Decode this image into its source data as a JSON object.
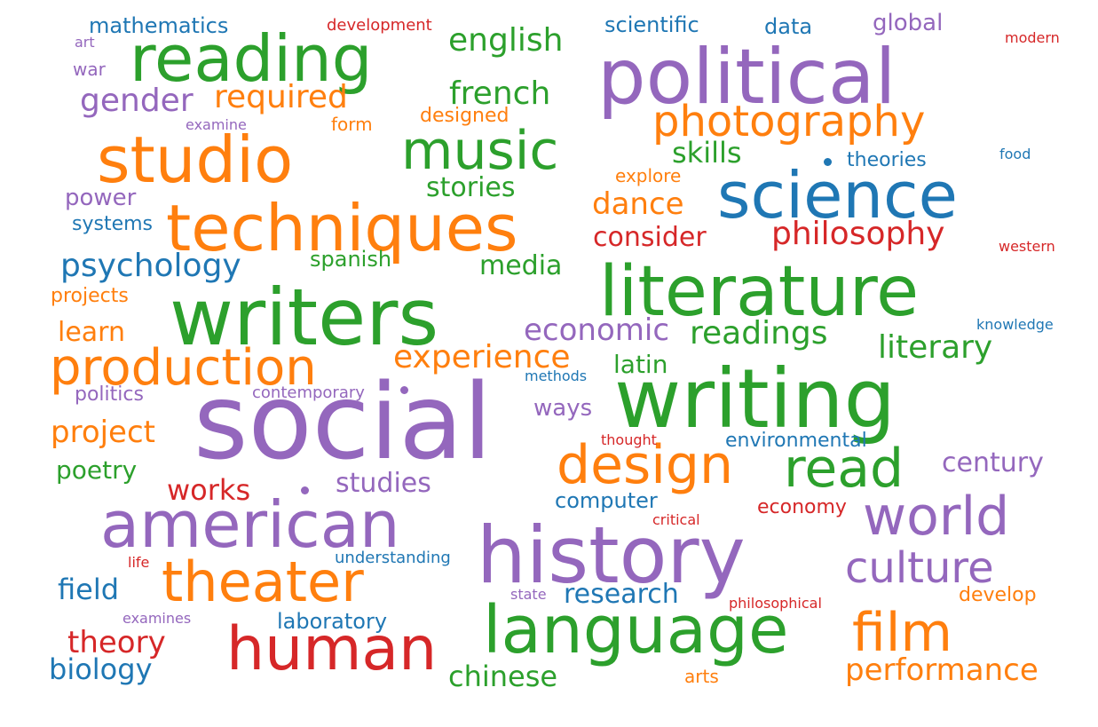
{
  "colors": {
    "purple": "#9467bd",
    "orange": "#ff7f0e",
    "green": "#2ca02c",
    "blue": "#1f77b4",
    "red": "#d62728"
  },
  "words": [
    {
      "text": "social",
      "color": "purple"
    },
    {
      "text": "writing",
      "color": "green"
    },
    {
      "text": "political",
      "color": "purple"
    },
    {
      "text": "writers",
      "color": "green"
    },
    {
      "text": "history",
      "color": "purple"
    },
    {
      "text": "literature",
      "color": "green"
    },
    {
      "text": "language",
      "color": "green"
    },
    {
      "text": "techniques",
      "color": "orange"
    },
    {
      "text": "american",
      "color": "purple"
    },
    {
      "text": "studio",
      "color": "orange"
    },
    {
      "text": "science",
      "color": "blue"
    },
    {
      "text": "reading",
      "color": "green"
    },
    {
      "text": "human",
      "color": "red"
    },
    {
      "text": "production",
      "color": "orange"
    },
    {
      "text": "theater",
      "color": "orange"
    },
    {
      "text": "design",
      "color": "orange"
    },
    {
      "text": "read",
      "color": "green"
    },
    {
      "text": "world",
      "color": "purple"
    },
    {
      "text": "music",
      "color": "green"
    },
    {
      "text": "film",
      "color": "orange"
    },
    {
      "text": "photography",
      "color": "orange"
    },
    {
      "text": "culture",
      "color": "purple"
    },
    {
      "text": "psychology",
      "color": "blue"
    },
    {
      "text": "philosophy",
      "color": "red"
    },
    {
      "text": "experience",
      "color": "orange"
    },
    {
      "text": "english",
      "color": "green"
    },
    {
      "text": "required",
      "color": "orange"
    },
    {
      "text": "gender",
      "color": "purple"
    },
    {
      "text": "french",
      "color": "green"
    },
    {
      "text": "readings",
      "color": "green"
    },
    {
      "text": "literary",
      "color": "green"
    },
    {
      "text": "economic",
      "color": "purple"
    },
    {
      "text": "project",
      "color": "orange"
    },
    {
      "text": "performance",
      "color": "orange"
    },
    {
      "text": "theory",
      "color": "red"
    },
    {
      "text": "research",
      "color": "blue"
    },
    {
      "text": "studies",
      "color": "purple"
    },
    {
      "text": "dance",
      "color": "orange"
    },
    {
      "text": "consider",
      "color": "red"
    },
    {
      "text": "skills",
      "color": "green"
    },
    {
      "text": "stories",
      "color": "green"
    },
    {
      "text": "media",
      "color": "green"
    },
    {
      "text": "field",
      "color": "blue"
    },
    {
      "text": "biology",
      "color": "blue"
    },
    {
      "text": "chinese",
      "color": "green"
    },
    {
      "text": "century",
      "color": "purple"
    },
    {
      "text": "works",
      "color": "red"
    },
    {
      "text": "learn",
      "color": "orange"
    },
    {
      "text": "latin",
      "color": "green"
    },
    {
      "text": "poetry",
      "color": "green"
    },
    {
      "text": "ways",
      "color": "purple"
    },
    {
      "text": "mathematics",
      "color": "blue"
    },
    {
      "text": "global",
      "color": "purple"
    },
    {
      "text": "spanish",
      "color": "green"
    },
    {
      "text": "power",
      "color": "purple"
    },
    {
      "text": "laboratory",
      "color": "blue"
    },
    {
      "text": "computer",
      "color": "blue"
    },
    {
      "text": "environmental",
      "color": "blue"
    },
    {
      "text": "scientific",
      "color": "blue"
    },
    {
      "text": "data",
      "color": "blue"
    },
    {
      "text": "theories",
      "color": "blue"
    },
    {
      "text": "economy",
      "color": "red"
    },
    {
      "text": "develop",
      "color": "orange"
    },
    {
      "text": "systems",
      "color": "blue"
    },
    {
      "text": "politics",
      "color": "purple"
    },
    {
      "text": "projects",
      "color": "orange"
    },
    {
      "text": "designed",
      "color": "orange"
    },
    {
      "text": "explore",
      "color": "orange"
    },
    {
      "text": "form",
      "color": "orange"
    },
    {
      "text": "war",
      "color": "purple"
    },
    {
      "text": "arts",
      "color": "orange"
    },
    {
      "text": "contemporary",
      "color": "purple"
    },
    {
      "text": "understanding",
      "color": "blue"
    },
    {
      "text": "development",
      "color": "red"
    },
    {
      "text": "modern",
      "color": "red"
    },
    {
      "text": "examine",
      "color": "purple"
    },
    {
      "text": "food",
      "color": "blue"
    },
    {
      "text": "western",
      "color": "red"
    },
    {
      "text": "knowledge",
      "color": "blue"
    },
    {
      "text": "methods",
      "color": "blue"
    },
    {
      "text": "thought",
      "color": "red"
    },
    {
      "text": "critical",
      "color": "red"
    },
    {
      "text": "life",
      "color": "red"
    },
    {
      "text": "state",
      "color": "purple"
    },
    {
      "text": "philosophical",
      "color": "red"
    },
    {
      "text": "examines",
      "color": "purple"
    },
    {
      "text": "art",
      "color": "purple"
    }
  ]
}
